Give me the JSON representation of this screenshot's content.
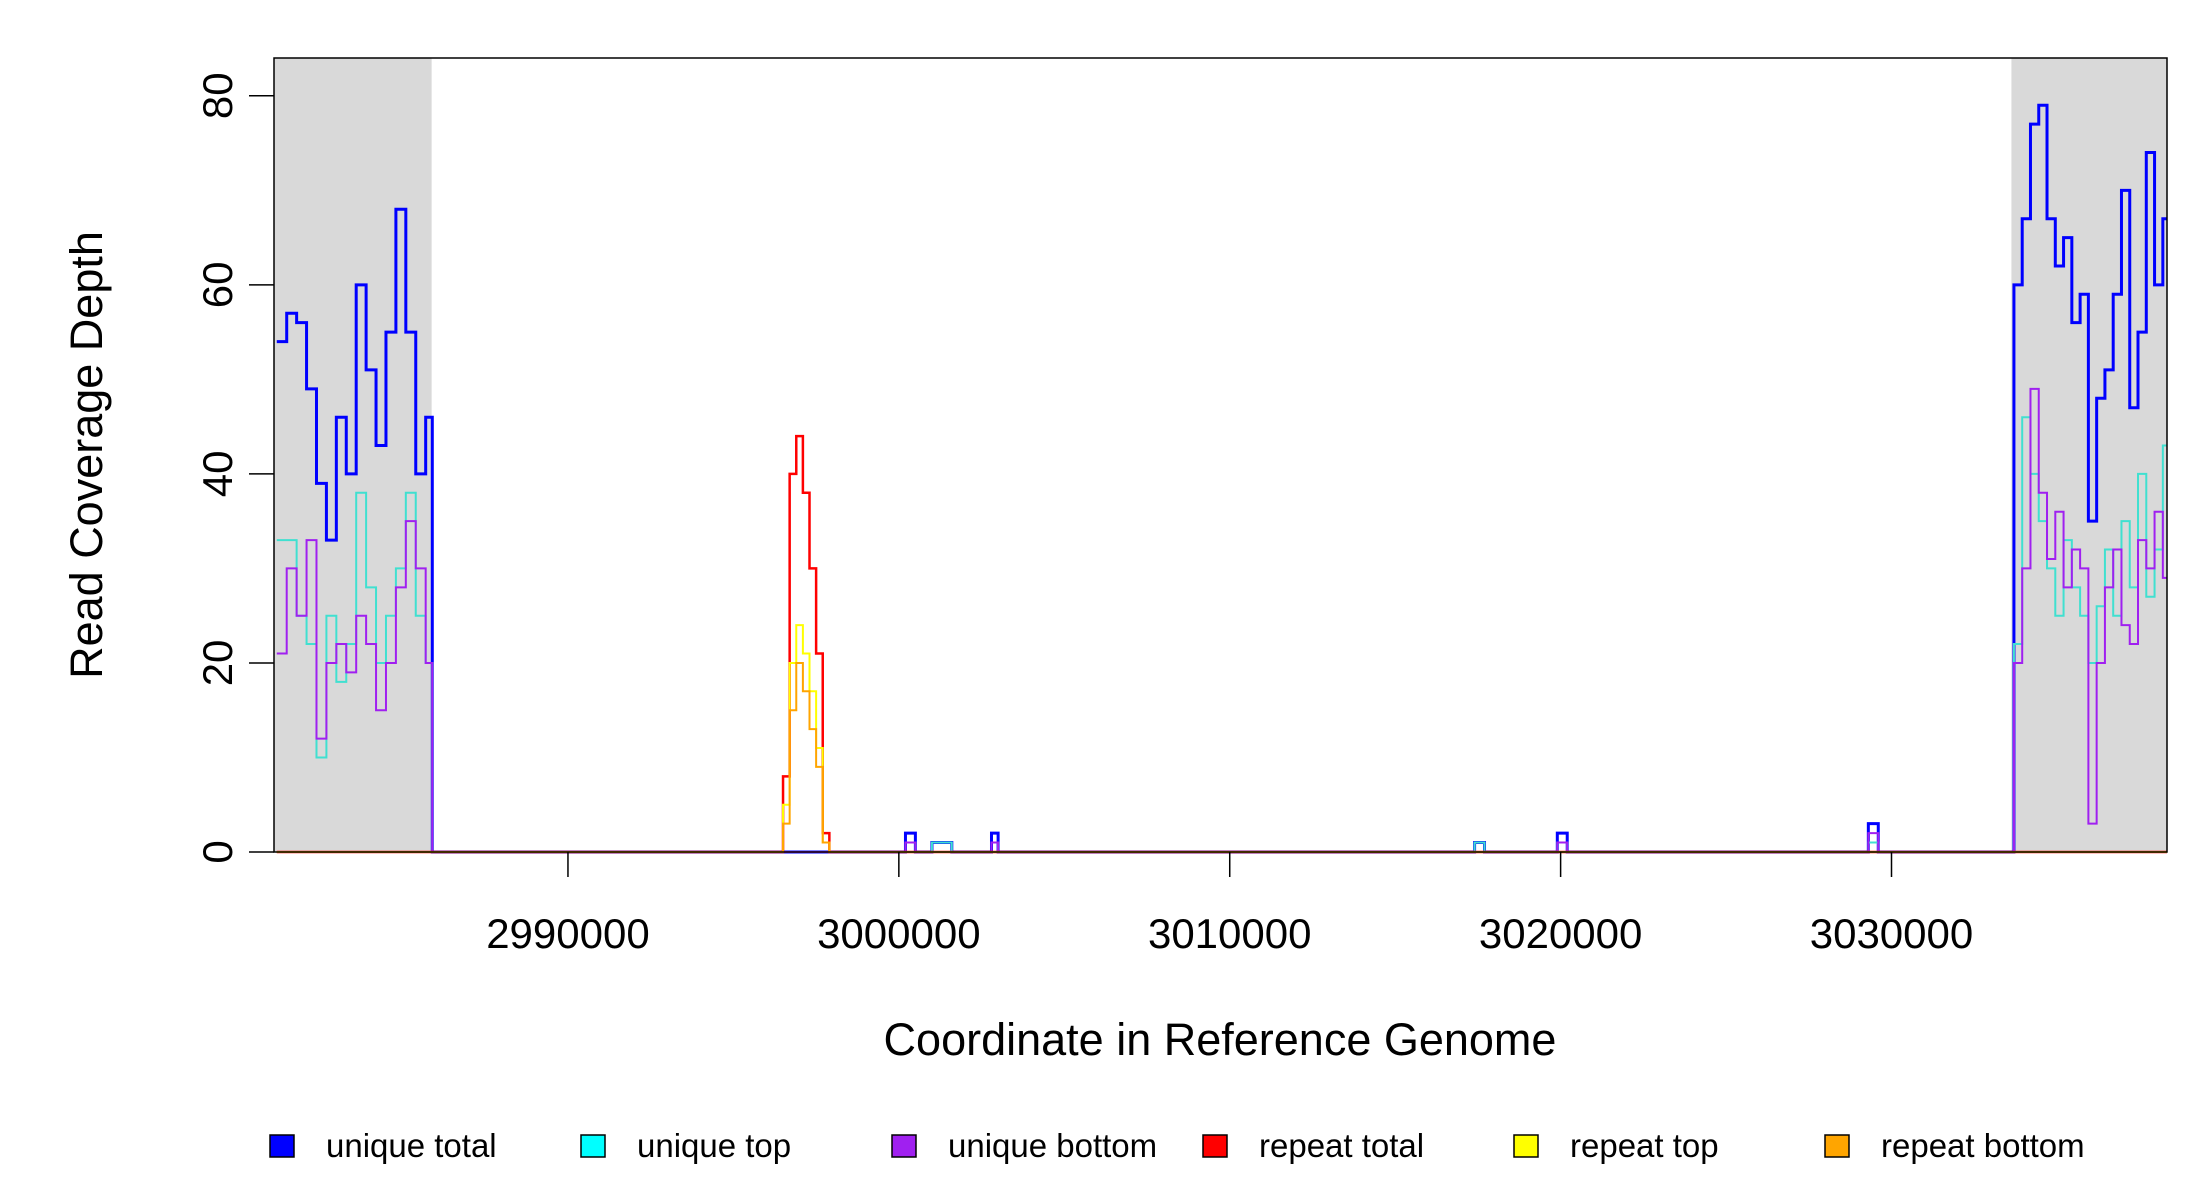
{
  "chart_data": {
    "type": "step-line",
    "x_label": "Coordinate in Reference Genome",
    "y_label": "Read Coverage Depth",
    "xlim": [
      2981116,
      3038326
    ],
    "ylim": [
      0,
      84
    ],
    "xticks": [
      2990000,
      3000000,
      3010000,
      3020000,
      3030000
    ],
    "yticks": [
      0,
      20,
      40,
      60,
      80
    ],
    "shaded_regions": [
      [
        2981116,
        2985880
      ],
      [
        3033624,
        3038326
      ]
    ],
    "shade_color": "#d9d9d9",
    "legend": "bottom",
    "x": [
      2981200,
      2981500,
      2981800,
      2982100,
      2982400,
      2982700,
      2983000,
      2983300,
      2983600,
      2983900,
      2984200,
      2984500,
      2984800,
      2985100,
      2985400,
      2985700,
      2985900,
      2996500,
      2996700,
      2996900,
      2997100,
      2997300,
      2997500,
      2997700,
      2997900,
      3000200,
      3000500,
      3001000,
      3001600,
      3002800,
      3003000,
      3017400,
      3017700,
      3019900,
      3020200,
      3029300,
      3029600,
      3033700,
      3033950,
      3034200,
      3034450,
      3034700,
      3034950,
      3035200,
      3035450,
      3035700,
      3035950,
      3036200,
      3036450,
      3036700,
      3036950,
      3037200,
      3037450,
      3037700,
      3037950,
      3038200
    ],
    "series": [
      {
        "name": "unique total",
        "color": "#0000ff",
        "legend_color": "#0000ff",
        "width": 3,
        "values": [
          54,
          57,
          56,
          49,
          39,
          33,
          46,
          40,
          60,
          51,
          43,
          55,
          68,
          55,
          40,
          46,
          0,
          0,
          0,
          0,
          0,
          0,
          0,
          0,
          0,
          2,
          0,
          1,
          0,
          2,
          0,
          1,
          0,
          2,
          0,
          3,
          0,
          60,
          67,
          77,
          79,
          67,
          62,
          65,
          56,
          59,
          35,
          48,
          51,
          59,
          70,
          47,
          55,
          74,
          60,
          67
        ]
      },
      {
        "name": "unique top",
        "color": "#40e0d0",
        "legend_color": "#00ffff",
        "width": 2,
        "values": [
          33,
          33,
          25,
          22,
          10,
          25,
          18,
          22,
          38,
          28,
          20,
          25,
          30,
          38,
          25,
          20,
          0,
          0,
          0,
          0,
          0,
          0,
          0,
          0,
          0,
          1,
          0,
          1,
          0,
          1,
          0,
          1,
          0,
          1,
          0,
          1,
          0,
          22,
          46,
          40,
          35,
          30,
          25,
          33,
          28,
          25,
          20,
          26,
          32,
          25,
          35,
          28,
          40,
          27,
          32,
          43
        ]
      },
      {
        "name": "unique bottom",
        "color": "#a020f0",
        "legend_color": "#a020f0",
        "width": 2,
        "values": [
          21,
          30,
          25,
          33,
          12,
          20,
          22,
          19,
          25,
          22,
          15,
          20,
          28,
          35,
          30,
          20,
          0,
          0,
          0,
          0,
          0,
          0,
          0,
          0,
          0,
          1,
          0,
          0,
          0,
          1,
          0,
          0,
          0,
          1,
          0,
          2,
          0,
          20,
          30,
          49,
          38,
          31,
          36,
          28,
          32,
          30,
          3,
          20,
          28,
          32,
          24,
          22,
          33,
          30,
          36,
          29
        ]
      },
      {
        "name": "repeat total",
        "color": "#ff0000",
        "legend_color": "#ff0000",
        "width": 2.5,
        "values": [
          0,
          0,
          0,
          0,
          0,
          0,
          0,
          0,
          0,
          0,
          0,
          0,
          0,
          0,
          0,
          0,
          0,
          8,
          40,
          44,
          38,
          30,
          21,
          2,
          0,
          0,
          0,
          0,
          0,
          0,
          0,
          0,
          0,
          0,
          0,
          0,
          0,
          0,
          0,
          0,
          0,
          0,
          0,
          0,
          0,
          0,
          0,
          0,
          0,
          0,
          0,
          0,
          0,
          0,
          0,
          0
        ]
      },
      {
        "name": "repeat top",
        "color": "#ffff00",
        "legend_color": "#ffff00",
        "width": 2,
        "values": [
          0,
          0,
          0,
          0,
          0,
          0,
          0,
          0,
          0,
          0,
          0,
          0,
          0,
          0,
          0,
          0,
          0,
          5,
          20,
          24,
          21,
          17,
          11,
          1,
          0,
          0,
          0,
          0,
          0,
          0,
          0,
          0,
          0,
          0,
          0,
          0,
          0,
          0,
          0,
          0,
          0,
          0,
          0,
          0,
          0,
          0,
          0,
          0,
          0,
          0,
          0,
          0,
          0,
          0,
          0,
          0
        ]
      },
      {
        "name": "repeat bottom",
        "color": "#ffa500",
        "legend_color": "#ffa500",
        "width": 2,
        "values": [
          0,
          0,
          0,
          0,
          0,
          0,
          0,
          0,
          0,
          0,
          0,
          0,
          0,
          0,
          0,
          0,
          0,
          3,
          15,
          20,
          17,
          13,
          9,
          1,
          0,
          0,
          0,
          0,
          0,
          0,
          0,
          0,
          0,
          0,
          0,
          0,
          0,
          0,
          0,
          0,
          0,
          0,
          0,
          0,
          0,
          0,
          0,
          0,
          0,
          0,
          0,
          0,
          0,
          0,
          0,
          0
        ]
      }
    ]
  }
}
